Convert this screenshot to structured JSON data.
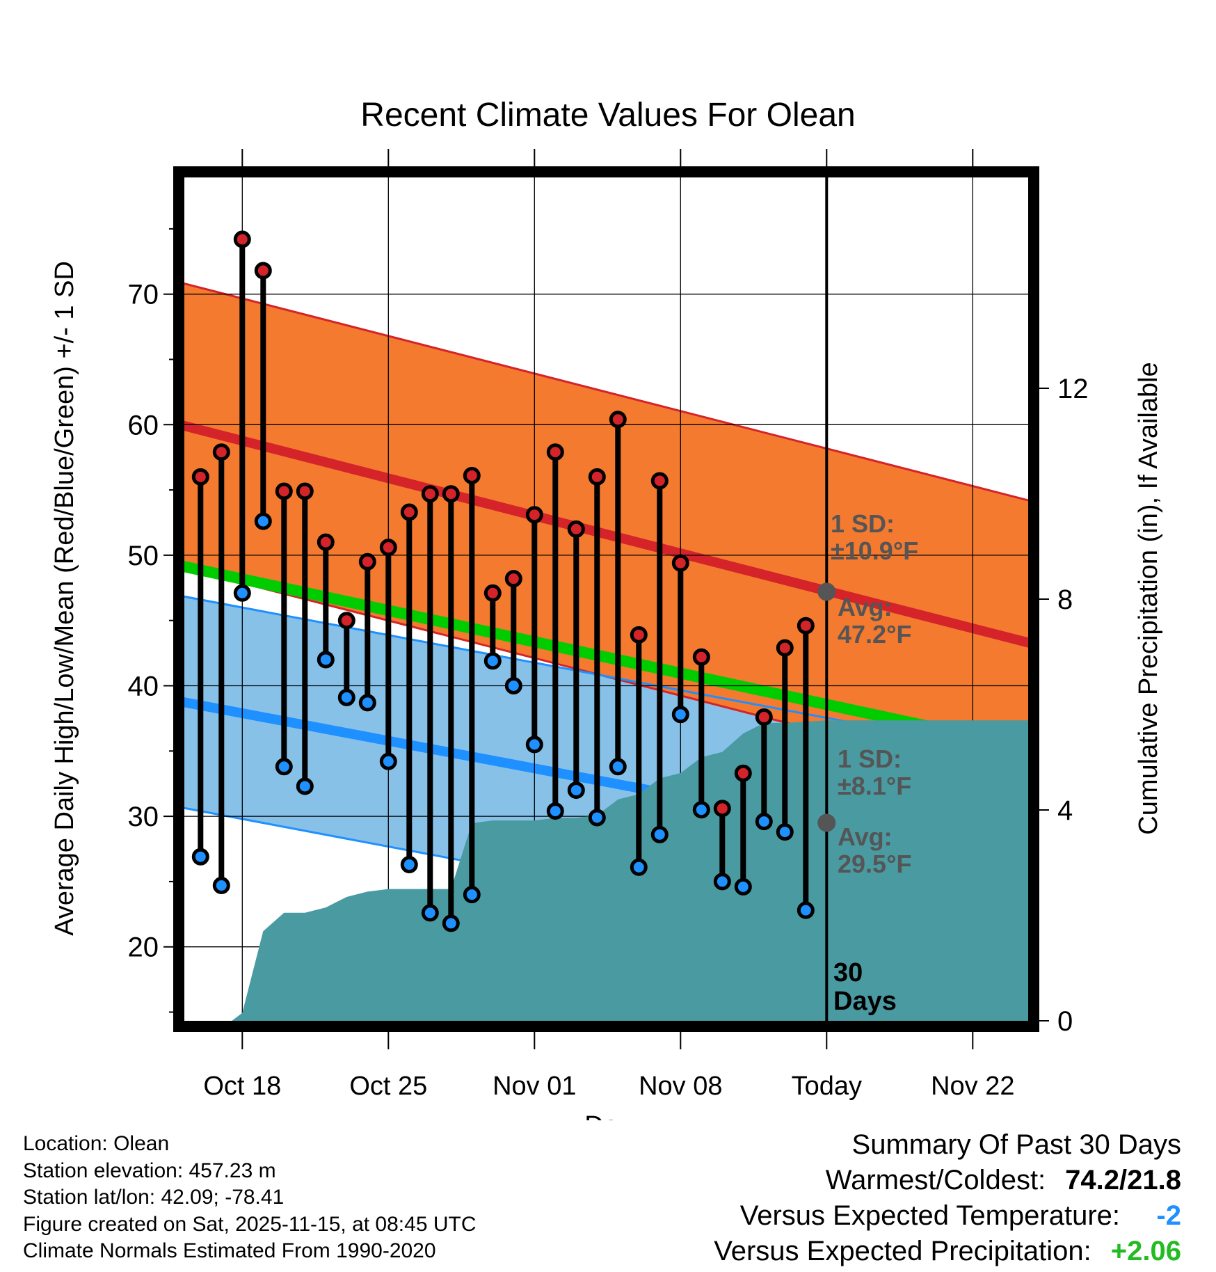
{
  "chart_data": {
    "type": "line",
    "title": "Recent Climate Values For Olean",
    "xlabel": "Day",
    "ylabel": "Average Daily High/Low/Mean (Red/Blue/Green) +/- 1 SD",
    "y2label": "Cumulative Precipitation (in), If Available",
    "ylim": [
      14.5,
      79.5
    ],
    "y2lim": [
      0,
      16
    ],
    "yticks": [
      20,
      30,
      40,
      50,
      60,
      70
    ],
    "y2ticks": [
      0,
      4,
      8,
      12
    ],
    "x_day_range": [
      0,
      42
    ],
    "x_ticks": [
      {
        "day": 3,
        "label": "Oct 18"
      },
      {
        "day": 10,
        "label": "Oct 25"
      },
      {
        "day": 17,
        "label": "Nov 01"
      },
      {
        "day": 24,
        "label": "Nov 08"
      },
      {
        "day": 31,
        "label": "Today"
      },
      {
        "day": 38,
        "label": "Nov 22"
      }
    ],
    "today_day": 31,
    "normals": {
      "high_avg": [
        60.0,
        43.0
      ],
      "high_sd": 10.9,
      "low_avg": [
        38.8,
        26.3
      ],
      "low_sd": 8.1,
      "mean_avg": [
        49.2,
        35.0
      ]
    },
    "annotations": {
      "high_sd": "1 SD:\n±10.9°F",
      "high_avg": "Avg:\n47.2°F",
      "low_sd": "1 SD:\n±8.1°F",
      "low_avg": "Avg:\n29.5°F",
      "today_high_value": 47.2,
      "today_low_value": 29.5,
      "days_label": "30\nDays"
    },
    "series": [
      {
        "name": "Daily High",
        "color": "#d4242a",
        "values": [
          56.0,
          57.9,
          74.2,
          71.8,
          54.9,
          54.9,
          51.0,
          45.0,
          49.5,
          50.6,
          53.3,
          54.7,
          54.7,
          56.1,
          47.1,
          48.2,
          53.1,
          57.9,
          52.0,
          56.0,
          60.4,
          43.9,
          55.7,
          49.4,
          42.2,
          30.6,
          33.3,
          37.6,
          42.9,
          44.6
        ]
      },
      {
        "name": "Daily Low",
        "color": "#1e90ff",
        "values": [
          26.9,
          24.7,
          47.1,
          52.6,
          33.8,
          32.3,
          42.0,
          39.1,
          38.7,
          34.2,
          26.3,
          22.6,
          21.8,
          24.0,
          41.9,
          40.0,
          35.5,
          30.4,
          32.0,
          29.9,
          33.8,
          26.1,
          28.6,
          37.8,
          30.5,
          25.0,
          24.6,
          29.6,
          28.8,
          22.8
        ]
      }
    ],
    "precipitation": {
      "name": "Cumulative Precipitation",
      "x": [
        0,
        2.5,
        3.0,
        4.0,
        5.0,
        6.0,
        7.0,
        8.0,
        9.0,
        10.0,
        11.0,
        12.0,
        13.0,
        14.0,
        15.0,
        16.0,
        17.0,
        18.0,
        19.0,
        20.0,
        21.0,
        22.0,
        23.0,
        24.0,
        25.0,
        26.0,
        27.0,
        28.0,
        29.0,
        31.0,
        41.4
      ],
      "values": [
        0,
        0,
        0.15,
        1.7,
        2.05,
        2.05,
        2.15,
        2.35,
        2.45,
        2.5,
        2.5,
        2.5,
        2.5,
        3.75,
        3.8,
        3.8,
        3.8,
        3.85,
        3.85,
        3.9,
        4.2,
        4.3,
        4.6,
        4.7,
        5.0,
        5.1,
        5.45,
        5.65,
        5.65,
        5.7,
        5.7
      ]
    }
  },
  "info": {
    "location": "Location: Olean",
    "elevation": "Station elevation: 457.23 m",
    "latlon": "Station lat/lon: 42.09; -78.41",
    "created": "Figure created on Sat, 2025-11-15, at 08:45 UTC",
    "normals": "Climate Normals Estimated From 1990-2020"
  },
  "summary": {
    "title": "Summary Of Past 30 Days",
    "warmest_label": "Warmest/Coldest:",
    "warmest_value": "74.2/21.8",
    "temp_label": "Versus Expected Temperature:",
    "temp_value": "-2",
    "temp_color": "#1e90ff",
    "precip_label": "Versus Expected Precipitation:",
    "precip_value": "+2.06",
    "precip_color": "#22bb22"
  },
  "colors": {
    "high_band": "#f47a2f",
    "high_line": "#d4242a",
    "low_band": "#87c1e8",
    "low_line": "#1e90ff",
    "mean_line": "#00cc00",
    "precip": "#4a9aa2",
    "overlap": "#9b1b1b",
    "annotation": "#555555"
  }
}
